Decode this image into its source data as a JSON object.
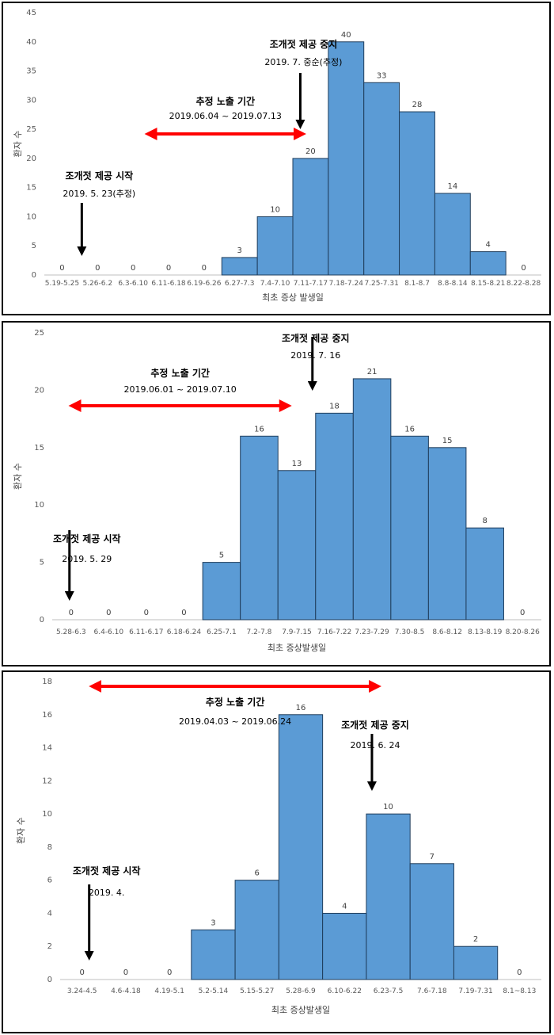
{
  "colors": {
    "bar_fill": "#5b9bd5",
    "bar_stroke": "#1f3d5c",
    "exposure_arrow": "#ff0000",
    "marker_arrow": "#000000",
    "axis": "#bfbfbf"
  },
  "chart_data": [
    {
      "type": "bar",
      "xlabel": "최초 증상 발생일",
      "ylabel": "환자 수",
      "ylim": [
        0,
        45
      ],
      "yticks": [
        0,
        5,
        10,
        15,
        20,
        25,
        30,
        35,
        40,
        45
      ],
      "categories": [
        "5.19-5.25",
        "5.26-6.2",
        "6.3-6.10",
        "6.11-6.18",
        "6.19-6.26",
        "6.27-7.3",
        "7.4-7.10",
        "7.11-7.17",
        "7.18-7.24",
        "7.25-7.31",
        "8.1-8.7",
        "8.8-8.14",
        "8.15-8.21",
        "8.22-8.28"
      ],
      "values": [
        0,
        0,
        0,
        0,
        0,
        3,
        10,
        20,
        40,
        33,
        28,
        14,
        4,
        0
      ],
      "annotations": {
        "start": {
          "title": "조개젓 제공 시작",
          "date": "2019. 5. 23(추정)",
          "x_index": 0.6
        },
        "stop": {
          "title": "조개젓 제공 중지",
          "date": "2019. 7. 중순(추정)",
          "x_index": 6.8
        },
        "exposure": {
          "title": "추정 노출 기간",
          "range": "2019.06.04 ~ 2019.07.13",
          "from_index": 2.5,
          "to_index": 6.7
        }
      }
    },
    {
      "type": "bar",
      "xlabel": "최초 증상발생일",
      "ylabel": "환자 수",
      "ylim": [
        0,
        25
      ],
      "yticks": [
        0,
        5,
        10,
        15,
        20,
        25
      ],
      "categories": [
        "5.28-6.3",
        "6.4-6.10",
        "6.11-6.17",
        "6.18-6.24",
        "6.25-7.1",
        "7.2-7.8",
        "7.9-7.15",
        "7.16-7.22",
        "7.23-7.29",
        "7.30-8.5",
        "8.6-8.12",
        "8.13-8.19",
        "8.20-8.26"
      ],
      "values": [
        0,
        0,
        0,
        0,
        5,
        16,
        13,
        18,
        21,
        16,
        15,
        8,
        0
      ],
      "annotations": {
        "start": {
          "title": "조개젓 제공 시작",
          "date": "2019. 5. 29",
          "x_index": 0.0
        },
        "stop": {
          "title": "조개젓 제공 중지",
          "date": "2019. 7. 16",
          "x_index": 6.5
        },
        "exposure": {
          "title": "추정 노출 기간",
          "range": "2019.06.01 ~ 2019.07.10",
          "from_index": 0.1,
          "to_index": 5.7
        }
      }
    },
    {
      "type": "bar",
      "xlabel": "최초 증상발생일",
      "ylabel": "환자 수",
      "ylim": [
        0,
        18
      ],
      "yticks": [
        0,
        2,
        4,
        6,
        8,
        10,
        12,
        14,
        16,
        18
      ],
      "categories": [
        "3.24-4.5",
        "4.6-4.18",
        "4.19-5.1",
        "5.2-5.14",
        "5.15-5.27",
        "5.28-6.9",
        "6.10-6.22",
        "6.23-7.5",
        "7.6-7.18",
        "7.19-7.31",
        "8.1~8.13"
      ],
      "values": [
        0,
        0,
        0,
        3,
        6,
        16,
        4,
        10,
        7,
        2,
        0
      ],
      "annotations": {
        "start": {
          "title": "조개젓 제공 시작",
          "date": "2019. 4.",
          "x_index": 0.2
        },
        "stop": {
          "title": "조개젓 제공 중지",
          "date": "2019. 6. 24",
          "x_index": 6.7
        },
        "exposure": {
          "title": "추정 노출 기간",
          "range": "2019.04.03 ~ 2019.06.24",
          "from_index": 0.3,
          "to_index": 6.7
        }
      }
    }
  ]
}
